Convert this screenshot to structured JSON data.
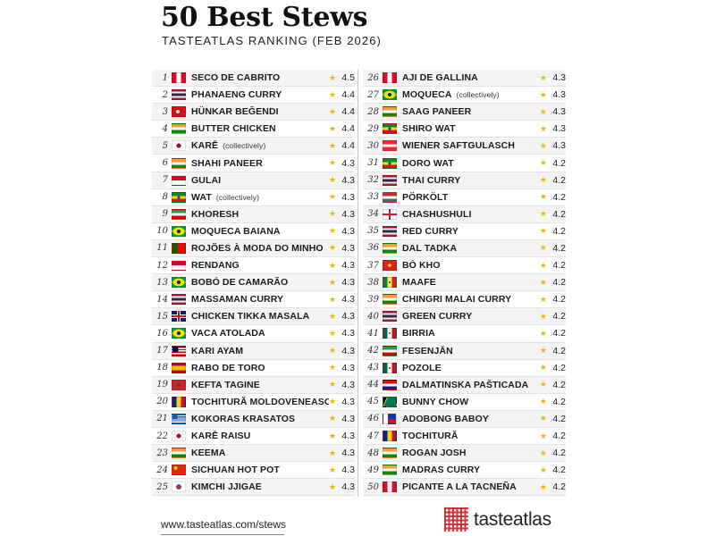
{
  "header": {
    "title": "50 Best Stews",
    "subtitle": "TASTEATLAS RANKING (FEB 2026)"
  },
  "columns": [
    [
      {
        "rank": "1",
        "name": "Seco de Cabrito",
        "note": "",
        "rating": "4.5",
        "flag": "peru"
      },
      {
        "rank": "2",
        "name": "Phanaeng Curry",
        "note": "",
        "rating": "4.4",
        "flag": "thailand"
      },
      {
        "rank": "3",
        "name": "Hünkar Beğendi",
        "note": "",
        "rating": "4.4",
        "flag": "turkey"
      },
      {
        "rank": "4",
        "name": "Butter Chicken",
        "note": "",
        "rating": "4.4",
        "flag": "india"
      },
      {
        "rank": "5",
        "name": "Karē",
        "note": "(collectively)",
        "rating": "4.4",
        "flag": "japan"
      },
      {
        "rank": "6",
        "name": "Shahi Paneer",
        "note": "",
        "rating": "4.3",
        "flag": "india"
      },
      {
        "rank": "7",
        "name": "Gulai",
        "note": "",
        "rating": "4.3",
        "flag": "indonesia"
      },
      {
        "rank": "8",
        "name": "Wat",
        "note": "(collectively)",
        "rating": "4.3",
        "flag": "ethiopia"
      },
      {
        "rank": "9",
        "name": "Khoresh",
        "note": "",
        "rating": "4.3",
        "flag": "iran"
      },
      {
        "rank": "10",
        "name": "Moqueca Baiana",
        "note": "",
        "rating": "4.3",
        "flag": "brazil"
      },
      {
        "rank": "11",
        "name": "Rojões à moda do Minho",
        "note": "",
        "rating": "4.3",
        "flag": "portugal"
      },
      {
        "rank": "12",
        "name": "Rendang",
        "note": "",
        "rating": "4.3",
        "flag": "indonesia"
      },
      {
        "rank": "13",
        "name": "Bobó de Camarão",
        "note": "",
        "rating": "4.3",
        "flag": "brazil"
      },
      {
        "rank": "14",
        "name": "Massaman Curry",
        "note": "",
        "rating": "4.3",
        "flag": "thailand"
      },
      {
        "rank": "15",
        "name": "Chicken Tikka Masala",
        "note": "",
        "rating": "4.3",
        "flag": "uk"
      },
      {
        "rank": "16",
        "name": "Vaca Atolada",
        "note": "",
        "rating": "4.3",
        "flag": "brazil"
      },
      {
        "rank": "17",
        "name": "Kari Ayam",
        "note": "",
        "rating": "4.3",
        "flag": "malaysia"
      },
      {
        "rank": "18",
        "name": "Rabo de Toro",
        "note": "",
        "rating": "4.3",
        "flag": "spain"
      },
      {
        "rank": "19",
        "name": "Kefta Tagine",
        "note": "",
        "rating": "4.3",
        "flag": "morocco"
      },
      {
        "rank": "20",
        "name": "Tochitură moldovenească",
        "note": "",
        "rating": "4.3",
        "flag": "romania"
      },
      {
        "rank": "21",
        "name": "Kokoras Krasatos",
        "note": "",
        "rating": "4.3",
        "flag": "greece"
      },
      {
        "rank": "22",
        "name": "Karē Raisu",
        "note": "",
        "rating": "4.3",
        "flag": "japan"
      },
      {
        "rank": "23",
        "name": "Keema",
        "note": "",
        "rating": "4.3",
        "flag": "india"
      },
      {
        "rank": "24",
        "name": "Sichuan Hot Pot",
        "note": "",
        "rating": "4.3",
        "flag": "china"
      },
      {
        "rank": "25",
        "name": "Kimchi Jjigae",
        "note": "",
        "rating": "4.3",
        "flag": "korea"
      }
    ],
    [
      {
        "rank": "26",
        "name": "Aji de Gallina",
        "note": "",
        "rating": "4.3",
        "flag": "peru"
      },
      {
        "rank": "27",
        "name": "Moqueca",
        "note": "(collectively)",
        "rating": "4.3",
        "flag": "brazil"
      },
      {
        "rank": "28",
        "name": "Saag Paneer",
        "note": "",
        "rating": "4.3",
        "flag": "india"
      },
      {
        "rank": "29",
        "name": "Shiro Wat",
        "note": "",
        "rating": "4.3",
        "flag": "ethiopia"
      },
      {
        "rank": "30",
        "name": "Wiener Saftgulasch",
        "note": "",
        "rating": "4.3",
        "flag": "austria"
      },
      {
        "rank": "31",
        "name": "Doro Wat",
        "note": "",
        "rating": "4.2",
        "flag": "ethiopia"
      },
      {
        "rank": "32",
        "name": "Thai Curry",
        "note": "",
        "rating": "4.2",
        "flag": "thailand"
      },
      {
        "rank": "33",
        "name": "Pörkölt",
        "note": "",
        "rating": "4.2",
        "flag": "hungary"
      },
      {
        "rank": "34",
        "name": "Chashushuli",
        "note": "",
        "rating": "4.2",
        "flag": "georgia"
      },
      {
        "rank": "35",
        "name": "Red Curry",
        "note": "",
        "rating": "4.2",
        "flag": "thailand"
      },
      {
        "rank": "36",
        "name": "Dal Tadka",
        "note": "",
        "rating": "4.2",
        "flag": "india"
      },
      {
        "rank": "37",
        "name": "Bò kho",
        "note": "",
        "rating": "4.2",
        "flag": "vietnam"
      },
      {
        "rank": "38",
        "name": "Maafe",
        "note": "",
        "rating": "4.2",
        "flag": "senegal"
      },
      {
        "rank": "39",
        "name": "Chingri Malai Curry",
        "note": "",
        "rating": "4.2",
        "flag": "india"
      },
      {
        "rank": "40",
        "name": "Green Curry",
        "note": "",
        "rating": "4.2",
        "flag": "thailand"
      },
      {
        "rank": "41",
        "name": "Birria",
        "note": "",
        "rating": "4.2",
        "flag": "mexico"
      },
      {
        "rank": "42",
        "name": "Fesenjān",
        "note": "",
        "rating": "4.2",
        "flag": "iran"
      },
      {
        "rank": "43",
        "name": "Pozole",
        "note": "",
        "rating": "4.2",
        "flag": "mexico"
      },
      {
        "rank": "44",
        "name": "Dalmatinska pašticada",
        "note": "",
        "rating": "4.2",
        "flag": "croatia"
      },
      {
        "rank": "45",
        "name": "Bunny Chow",
        "note": "",
        "rating": "4.2",
        "flag": "southafrica"
      },
      {
        "rank": "46",
        "name": "Adobong Baboy",
        "note": "",
        "rating": "4.2",
        "flag": "philippines"
      },
      {
        "rank": "47",
        "name": "Tochitură",
        "note": "",
        "rating": "4.2",
        "flag": "romania"
      },
      {
        "rank": "48",
        "name": "Rogan Josh",
        "note": "",
        "rating": "4.2",
        "flag": "india"
      },
      {
        "rank": "49",
        "name": "Madras Curry",
        "note": "",
        "rating": "4.2",
        "flag": "india"
      },
      {
        "rank": "50",
        "name": "Picante a la Tacneña",
        "note": "",
        "rating": "4.2",
        "flag": "peru"
      }
    ]
  ],
  "star_glyph": "★",
  "colors": {
    "star": "#f0b400",
    "brand": "#d42328"
  },
  "footer": {
    "url": "www.tasteatlas.com/stews",
    "logo_text": "tasteatlas"
  }
}
